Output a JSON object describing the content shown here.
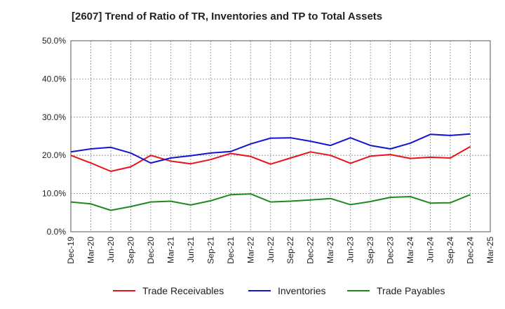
{
  "chart_data": {
    "type": "line",
    "title": "[2607]  Trend of Ratio of TR, Inventories and TP to Total Assets",
    "xlabel": "",
    "ylabel": "",
    "categories": [
      "Dec-19",
      "Mar-20",
      "Jun-20",
      "Sep-20",
      "Dec-20",
      "Mar-21",
      "Jun-21",
      "Sep-21",
      "Dec-21",
      "Mar-22",
      "Jun-22",
      "Sep-22",
      "Dec-22",
      "Mar-23",
      "Jun-23",
      "Sep-23",
      "Dec-23",
      "Mar-24",
      "Jun-24",
      "Sep-24",
      "Dec-24",
      "Mar-25"
    ],
    "ylim": [
      0,
      50
    ],
    "yticks": [
      0,
      10,
      20,
      30,
      40,
      50
    ],
    "ytick_labels": [
      "0.0%",
      "10.0%",
      "20.0%",
      "30.0%",
      "40.0%",
      "50.0%"
    ],
    "grid": true,
    "legend_position": "bottom",
    "series": [
      {
        "name": "Trade Receivables",
        "color": "#e8141b",
        "values": [
          20.0,
          18.0,
          15.8,
          17.0,
          20.0,
          18.5,
          17.8,
          18.9,
          20.5,
          19.7,
          17.7,
          19.3,
          20.9,
          20.0,
          17.9,
          19.8,
          20.2,
          19.2,
          19.5,
          19.3,
          22.3,
          null
        ]
      },
      {
        "name": "Inventories",
        "color": "#1414d0",
        "values": [
          20.9,
          21.7,
          22.1,
          20.6,
          18.0,
          19.3,
          19.9,
          20.6,
          21.0,
          23.0,
          24.5,
          24.6,
          23.7,
          22.6,
          24.6,
          22.6,
          21.7,
          23.2,
          25.5,
          25.2,
          25.6,
          null
        ]
      },
      {
        "name": "Trade Payables",
        "color": "#1e8a1e",
        "values": [
          7.8,
          7.3,
          5.6,
          6.6,
          7.8,
          8.0,
          7.0,
          8.1,
          9.7,
          9.9,
          7.8,
          8.0,
          8.3,
          8.7,
          7.1,
          7.9,
          9.0,
          9.2,
          7.5,
          7.6,
          9.7,
          null
        ]
      }
    ]
  }
}
